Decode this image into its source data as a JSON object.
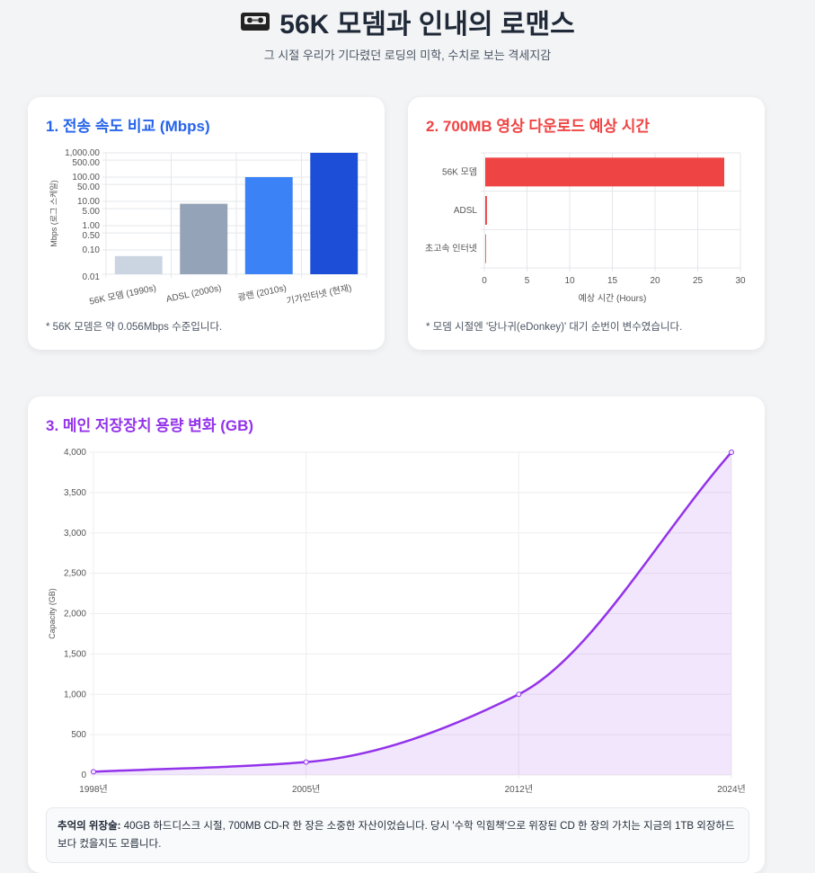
{
  "header": {
    "icon": "videocassette-icon",
    "emoji": "📼",
    "title": "56K 모뎀과 인내의 로맨스",
    "subtitle": "그 시절 우리가 기다렸던 로딩의 미학, 수치로 보는 격세지감"
  },
  "cards": [
    {
      "title": "1. 전송 속도 비교 (Mbps)",
      "color": "#2563eb",
      "note": "* 56K 모뎀은 약 0.056Mbps 수준입니다."
    },
    {
      "title": "2. 700MB 영상 다운로드 예상 시간",
      "color": "#ef4444",
      "note": "* 모뎀 시절엔 '당나귀(eDonkey)' 대기 순번이 변수였습니다."
    },
    {
      "title": "3. 메인 저장장치 용량 변화 (GB)",
      "color": "#9333ea",
      "memo_label": "추억의 위장술:",
      "memo_text": " 40GB 하드디스크 시절, 700MB CD-R 한 장은 소중한 자산이었습니다. 당시 '수학 익힘책'으로 위장된 CD 한 장의 가치는 지금의 1TB 외장하드보다 컸을지도 모릅니다."
    }
  ],
  "chart_data": [
    {
      "type": "bar",
      "orientation": "vertical",
      "scale": "log",
      "categories": [
        "56K 모뎀 (1990s)",
        "ADSL (2000s)",
        "광랜 (2010s)",
        "기가인터넷 (현재)"
      ],
      "values": [
        0.056,
        8,
        100,
        1000
      ],
      "colors": [
        "#cbd5e1",
        "#94a3b8",
        "#3b82f6",
        "#1d4ed8"
      ],
      "ylabel": "Mbps (로그 스케일)",
      "yticks": [
        "1,000.00",
        "500.00",
        "100.00",
        "50.00",
        "10.00",
        "5.00",
        "1.00",
        "0.50",
        "0.10",
        "0.01"
      ],
      "ytick_values": [
        1000,
        500,
        100,
        50,
        10,
        5,
        1,
        0.5,
        0.1,
        0.01
      ],
      "ylim": [
        0.01,
        1000
      ],
      "grid": true
    },
    {
      "type": "bar",
      "orientation": "horizontal",
      "categories": [
        "56K 모뎀",
        "ADSL",
        "초고속 인터넷"
      ],
      "values": [
        28,
        0.2,
        0.02
      ],
      "color": "#ef4444",
      "xlabel": "예상 시간 (Hours)",
      "xlim": [
        0,
        30
      ],
      "xticks": [
        "0",
        "5",
        "10",
        "15",
        "20",
        "25",
        "30"
      ],
      "grid": true
    },
    {
      "type": "area",
      "categories": [
        "1998년",
        "2005년",
        "2012년",
        "2024년"
      ],
      "values": [
        40,
        160,
        1000,
        4000
      ],
      "color": "#9333ea",
      "fill": "rgba(147,51,234,0.12)",
      "ylabel": "Capacity (GB)",
      "ylim": [
        0,
        4000
      ],
      "yticks": [
        "0",
        "500",
        "1,000",
        "1,500",
        "2,000",
        "2,500",
        "3,000",
        "3,500",
        "4,000"
      ],
      "grid": true
    }
  ]
}
